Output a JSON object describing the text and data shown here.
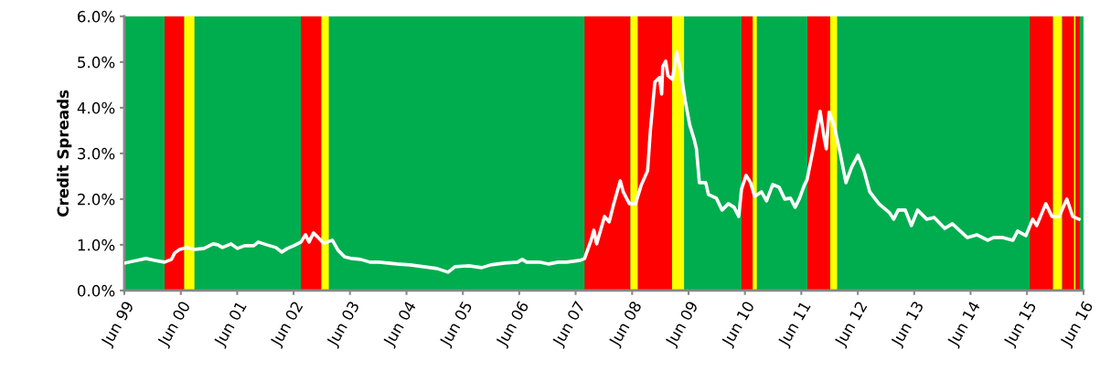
{
  "chart_data": {
    "type": "line",
    "ylabel": "Credit Spreads",
    "x": [
      "1999-06-02",
      "1999-08-21",
      "1999-10-19",
      "1999-12-16",
      "2000-02-17",
      "2000-04-01",
      "2000-04-22",
      "2000-05-25",
      "2000-07-08",
      "2000-09-02",
      "2000-10-29",
      "2000-12-27",
      "2001-01-26",
      "2001-02-25",
      "2001-04-22",
      "2001-06-02",
      "2001-07-19",
      "2001-09-16",
      "2001-10-15",
      "2001-12-09",
      "2002-02-07",
      "2002-03-16",
      "2002-04-22",
      "2002-06-02",
      "2002-07-19",
      "2002-08-17",
      "2002-09-09",
      "2002-10-08",
      "2002-11-07",
      "2002-12-09",
      "2003-01-04",
      "2003-02-07",
      "2003-03-16",
      "2003-04-26",
      "2003-06-13",
      "2003-08-10",
      "2003-10-08",
      "2003-12-05",
      "2004-04-01",
      "2004-06-23",
      "2004-09-20",
      "2004-12-16",
      "2005-02-25",
      "2005-04-11",
      "2005-07-08",
      "2005-10-01",
      "2005-11-28",
      "2006-02-25",
      "2006-05-21",
      "2006-06-20",
      "2006-07-19",
      "2006-10-15",
      "2006-12-09",
      "2007-02-07",
      "2007-04-04",
      "2007-07-01",
      "2007-07-29",
      "2007-09-09",
      "2007-09-27",
      "2007-10-15",
      "2007-12-05",
      "2008-01-04",
      "2008-02-03",
      "2008-03-16",
      "2008-04-04",
      "2008-05-14",
      "2008-06-23",
      "2008-07-29",
      "2008-09-09",
      "2008-09-27",
      "2008-10-26",
      "2008-11-25",
      "2008-12-09",
      "2008-12-16",
      "2009-01-04",
      "2009-01-19",
      "2009-02-17",
      "2009-03-16",
      "2009-04-11",
      "2009-05-10",
      "2009-06-09",
      "2009-07-08",
      "2009-07-22",
      "2009-08-10",
      "2009-09-20",
      "2009-10-08",
      "2009-11-28",
      "2010-01-04",
      "2010-02-14",
      "2010-03-23",
      "2010-04-22",
      "2010-05-10",
      "2010-06-09",
      "2010-07-08",
      "2010-08-03",
      "2010-09-16",
      "2010-10-19",
      "2010-11-28",
      "2011-01-08",
      "2011-02-14",
      "2011-03-23",
      "2011-04-22",
      "2011-05-21",
      "2011-06-20",
      "2011-07-08",
      "2011-08-17",
      "2011-10-01",
      "2011-10-26",
      "2011-11-10",
      "2011-11-28",
      "2011-12-27",
      "2012-02-07",
      "2012-03-16",
      "2012-04-22",
      "2012-06-02",
      "2012-07-11",
      "2012-08-17",
      "2012-10-15",
      "2012-12-23",
      "2013-01-19",
      "2013-02-17",
      "2013-04-04",
      "2013-05-14",
      "2013-06-23",
      "2013-08-21",
      "2013-10-08",
      "2013-12-16",
      "2014-02-03",
      "2014-05-10",
      "2014-07-11",
      "2014-09-20",
      "2014-10-29",
      "2014-12-27",
      "2015-03-02",
      "2015-04-01",
      "2015-05-25",
      "2015-07-08",
      "2015-08-03",
      "2015-10-01",
      "2015-11-10",
      "2015-12-27",
      "2016-02-14",
      "2016-03-23",
      "2016-05-03"
    ],
    "series": [
      {
        "color": "#ffffff",
        "values": [
          0.6,
          0.66,
          0.7,
          0.66,
          0.62,
          0.68,
          0.82,
          0.9,
          0.94,
          0.9,
          0.92,
          1.02,
          1.0,
          0.94,
          1.02,
          0.92,
          0.98,
          0.98,
          1.06,
          1.0,
          0.94,
          0.84,
          0.92,
          0.98,
          1.06,
          1.22,
          1.06,
          1.26,
          1.16,
          1.04,
          1.06,
          1.1,
          0.88,
          0.74,
          0.7,
          0.68,
          0.62,
          0.62,
          0.58,
          0.56,
          0.52,
          0.48,
          0.4,
          0.52,
          0.54,
          0.5,
          0.56,
          0.6,
          0.62,
          0.68,
          0.62,
          0.62,
          0.58,
          0.62,
          0.62,
          0.66,
          0.7,
          1.1,
          1.32,
          1.02,
          1.62,
          1.5,
          1.9,
          2.4,
          2.16,
          1.9,
          1.9,
          2.3,
          2.62,
          3.5,
          4.56,
          4.66,
          4.3,
          4.9,
          5.02,
          4.7,
          4.62,
          5.22,
          4.82,
          4.16,
          3.62,
          3.3,
          3.1,
          2.36,
          2.36,
          2.1,
          2.02,
          1.76,
          1.9,
          1.82,
          1.62,
          2.22,
          2.52,
          2.36,
          2.06,
          2.16,
          1.96,
          2.32,
          2.26,
          2.0,
          2.02,
          1.82,
          2.02,
          2.3,
          2.42,
          3.1,
          3.92,
          3.36,
          3.1,
          3.9,
          3.66,
          3.02,
          2.36,
          2.7,
          2.96,
          2.62,
          2.16,
          1.9,
          1.7,
          1.56,
          1.76,
          1.76,
          1.42,
          1.76,
          1.56,
          1.6,
          1.36,
          1.46,
          1.16,
          1.22,
          1.1,
          1.16,
          1.16,
          1.1,
          1.3,
          1.2,
          1.56,
          1.42,
          1.9,
          1.62,
          1.62,
          2.0,
          1.62,
          1.56
        ]
      }
    ],
    "xlim": [
      "1999-06-01",
      "2016-06-01"
    ],
    "ylim": [
      0,
      6
    ],
    "xticks": [
      {
        "value": "1999-06-01",
        "label": "Jun 99"
      },
      {
        "value": "2000-06-01",
        "label": "Jun 00"
      },
      {
        "value": "2001-06-01",
        "label": "Jun 01"
      },
      {
        "value": "2002-06-01",
        "label": "Jun 02"
      },
      {
        "value": "2003-06-01",
        "label": "Jun 03"
      },
      {
        "value": "2004-06-01",
        "label": "Jun 04"
      },
      {
        "value": "2005-06-01",
        "label": "Jun 05"
      },
      {
        "value": "2006-06-01",
        "label": "Jun 06"
      },
      {
        "value": "2007-06-01",
        "label": "Jun 07"
      },
      {
        "value": "2008-06-01",
        "label": "Jun 08"
      },
      {
        "value": "2009-06-01",
        "label": "Jun 09"
      },
      {
        "value": "2010-06-01",
        "label": "Jun 10"
      },
      {
        "value": "2011-06-01",
        "label": "Jun 11"
      },
      {
        "value": "2012-06-01",
        "label": "Jun 12"
      },
      {
        "value": "2013-06-01",
        "label": "Jun 13"
      },
      {
        "value": "2014-06-01",
        "label": "Jun 14"
      },
      {
        "value": "2015-06-01",
        "label": "Jun 15"
      },
      {
        "value": "2016-06-01",
        "label": "Jun 16"
      }
    ],
    "yticks": [
      {
        "value": 0,
        "label": "0.0%"
      },
      {
        "value": 1,
        "label": "1.0%"
      },
      {
        "value": 2,
        "label": "2.0%"
      },
      {
        "value": 3,
        "label": "3.0%"
      },
      {
        "value": 4,
        "label": "4.0%"
      },
      {
        "value": 5,
        "label": "5.0%"
      },
      {
        "value": 6,
        "label": "6.0%"
      }
    ],
    "bands": [
      {
        "axis": "x",
        "from": "1999-06-01",
        "to": "2016-06-01",
        "color": "#00ad4e"
      },
      {
        "axis": "x",
        "from": "2000-02-17",
        "to": "2000-06-23",
        "color": "#ff0000"
      },
      {
        "axis": "x",
        "from": "2000-06-23",
        "to": "2000-08-28",
        "color": "#ffff00"
      },
      {
        "axis": "x",
        "from": "2002-07-19",
        "to": "2002-11-28",
        "color": "#ff0000"
      },
      {
        "axis": "x",
        "from": "2002-11-28",
        "to": "2003-01-15",
        "color": "#ffff00"
      },
      {
        "axis": "x",
        "from": "2007-07-29",
        "to": "2008-05-21",
        "color": "#ff0000"
      },
      {
        "axis": "x",
        "from": "2008-05-21",
        "to": "2008-07-08",
        "color": "#ffff00"
      },
      {
        "axis": "x",
        "from": "2008-07-08",
        "to": "2009-02-14",
        "color": "#ff0000"
      },
      {
        "axis": "x",
        "from": "2009-02-14",
        "to": "2009-05-03",
        "color": "#ffff00"
      },
      {
        "axis": "x",
        "from": "2010-05-10",
        "to": "2010-07-22",
        "color": "#ff0000"
      },
      {
        "axis": "x",
        "from": "2010-07-22",
        "to": "2010-08-17",
        "color": "#ffff00"
      },
      {
        "axis": "x",
        "from": "2011-07-11",
        "to": "2011-12-05",
        "color": "#ff0000"
      },
      {
        "axis": "x",
        "from": "2011-12-05",
        "to": "2012-01-19",
        "color": "#ffff00"
      },
      {
        "axis": "x",
        "from": "2015-06-20",
        "to": "2015-11-17",
        "color": "#ff0000"
      },
      {
        "axis": "x",
        "from": "2015-11-17",
        "to": "2016-01-15",
        "color": "#ffff00"
      },
      {
        "axis": "x",
        "from": "2016-01-15",
        "to": "2016-04-01",
        "color": "#ff0000"
      },
      {
        "axis": "x",
        "from": "2016-04-01",
        "to": "2016-04-11",
        "color": "#ffff00"
      },
      {
        "axis": "x",
        "from": "2016-04-11",
        "to": "2016-05-07",
        "color": "#ff0000"
      }
    ],
    "grid": false,
    "marker": "none",
    "line_style": "solid"
  }
}
